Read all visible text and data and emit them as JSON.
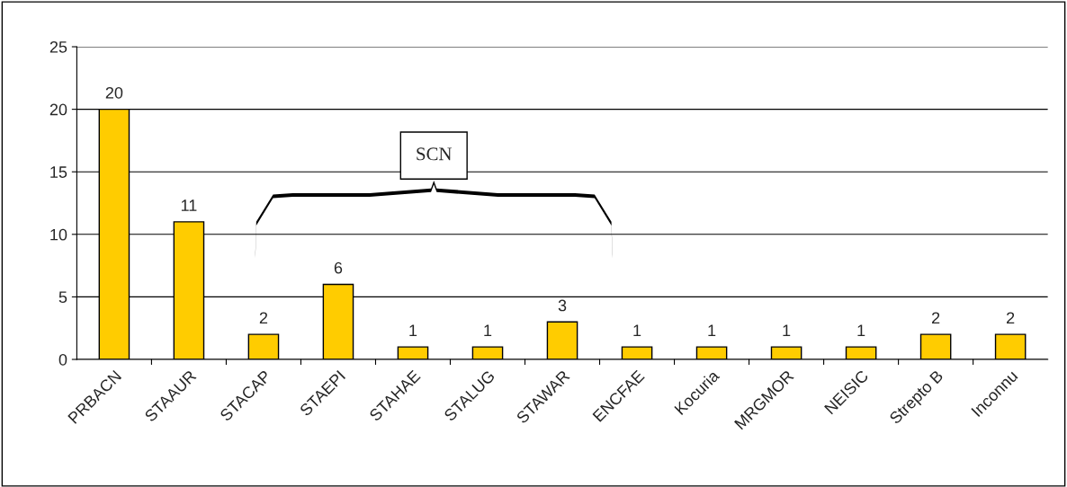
{
  "chart_data": {
    "type": "bar",
    "categories": [
      "PRBACN",
      "STAAUR",
      "STACAP",
      "STAEPI",
      "STAHAE",
      "STALUG",
      "STAWAR",
      "ENCFAE",
      "Kocuria",
      "MRGMOR",
      "NEISIC",
      "Strepto B",
      "Inconnu"
    ],
    "values": [
      20,
      11,
      2,
      6,
      1,
      1,
      3,
      1,
      1,
      1,
      1,
      2,
      2
    ],
    "color": "#ffcc00",
    "ylim": [
      0,
      25
    ],
    "yticks": [
      0,
      5,
      10,
      15,
      20,
      25
    ],
    "grid": "y",
    "data_labels": true,
    "annotations": [
      "SCN"
    ]
  }
}
